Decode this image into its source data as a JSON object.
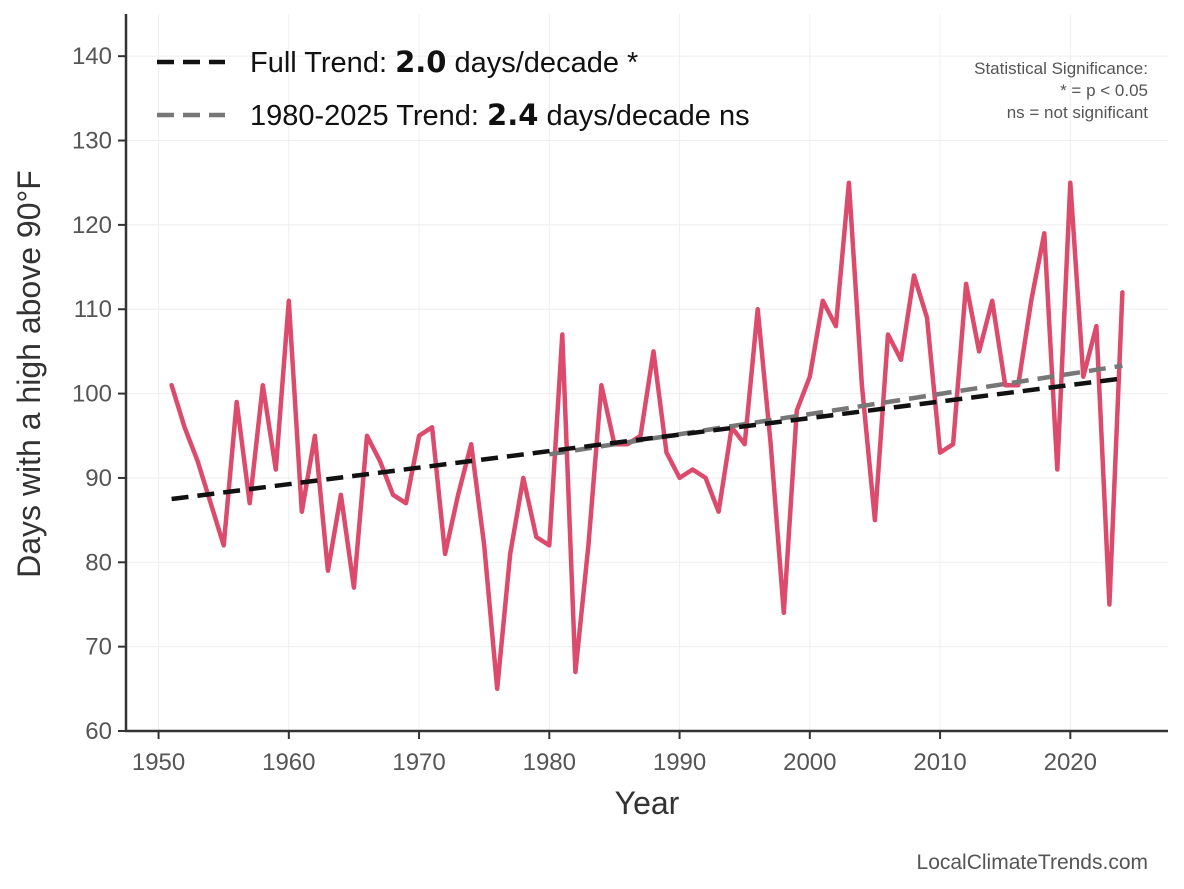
{
  "chart_data": {
    "type": "line",
    "xlabel": "Year",
    "ylabel": "Days with a high above 90°F",
    "xlim": [
      1947.5,
      2027.5
    ],
    "ylim": [
      60,
      145
    ],
    "x_ticks": [
      1950,
      1960,
      1970,
      1980,
      1990,
      2000,
      2010,
      2020
    ],
    "y_ticks": [
      60,
      70,
      80,
      90,
      100,
      110,
      120,
      130,
      140
    ],
    "grid": true,
    "colors": {
      "series": "#dc4b6b",
      "full_trend": "#111111",
      "recent_trend": "#777777",
      "axis": "#333333",
      "grid": "#eeeeee"
    },
    "series": [
      {
        "name": "Days with a high above 90°F",
        "x": [
          1951,
          1952,
          1953,
          1954,
          1955,
          1956,
          1957,
          1958,
          1959,
          1960,
          1961,
          1962,
          1963,
          1964,
          1965,
          1966,
          1967,
          1968,
          1969,
          1970,
          1971,
          1972,
          1973,
          1974,
          1975,
          1976,
          1977,
          1978,
          1979,
          1980,
          1981,
          1982,
          1983,
          1984,
          1985,
          1986,
          1987,
          1988,
          1989,
          1990,
          1991,
          1992,
          1993,
          1994,
          1995,
          1996,
          1997,
          1998,
          1999,
          2000,
          2001,
          2002,
          2003,
          2004,
          2005,
          2006,
          2007,
          2008,
          2009,
          2010,
          2011,
          2012,
          2013,
          2014,
          2015,
          2016,
          2017,
          2018,
          2019,
          2020,
          2021,
          2022,
          2023,
          2024
        ],
        "values": [
          101,
          96,
          92,
          87,
          82,
          99,
          87,
          101,
          91,
          111,
          86,
          95,
          79,
          88,
          77,
          95,
          92,
          88,
          87,
          95,
          96,
          81,
          88,
          94,
          82,
          65,
          81,
          90,
          83,
          82,
          107,
          67,
          82,
          101,
          94,
          94,
          95,
          105,
          93,
          90,
          91,
          90,
          86,
          96,
          94,
          110,
          94,
          74,
          98,
          102,
          111,
          108,
          125,
          101,
          85,
          107,
          104,
          114,
          109,
          93,
          94,
          113,
          105,
          111,
          101,
          101,
          111,
          119,
          91,
          125,
          102,
          108,
          75,
          112
        ]
      }
    ],
    "trends": [
      {
        "name": "Full Trend",
        "x": [
          1951,
          2024
        ],
        "values": [
          87.5,
          101.8
        ],
        "style": "dashed"
      },
      {
        "name": "1980-2025 Trend",
        "x": [
          1980,
          2024
        ],
        "values": [
          92.8,
          103.3
        ],
        "style": "dashed"
      }
    ]
  },
  "legend": {
    "full": {
      "prefix": "Full Trend: ",
      "value": "2.0",
      "suffix": " days/decade *"
    },
    "recent": {
      "prefix": "1980-2025 Trend: ",
      "value": "2.4",
      "suffix": " days/decade ns"
    }
  },
  "significance_note": {
    "title": "Statistical Significance:",
    "line1": "* = p < 0.05",
    "line2": "ns = not significant"
  },
  "credit": "LocalClimateTrends.com"
}
